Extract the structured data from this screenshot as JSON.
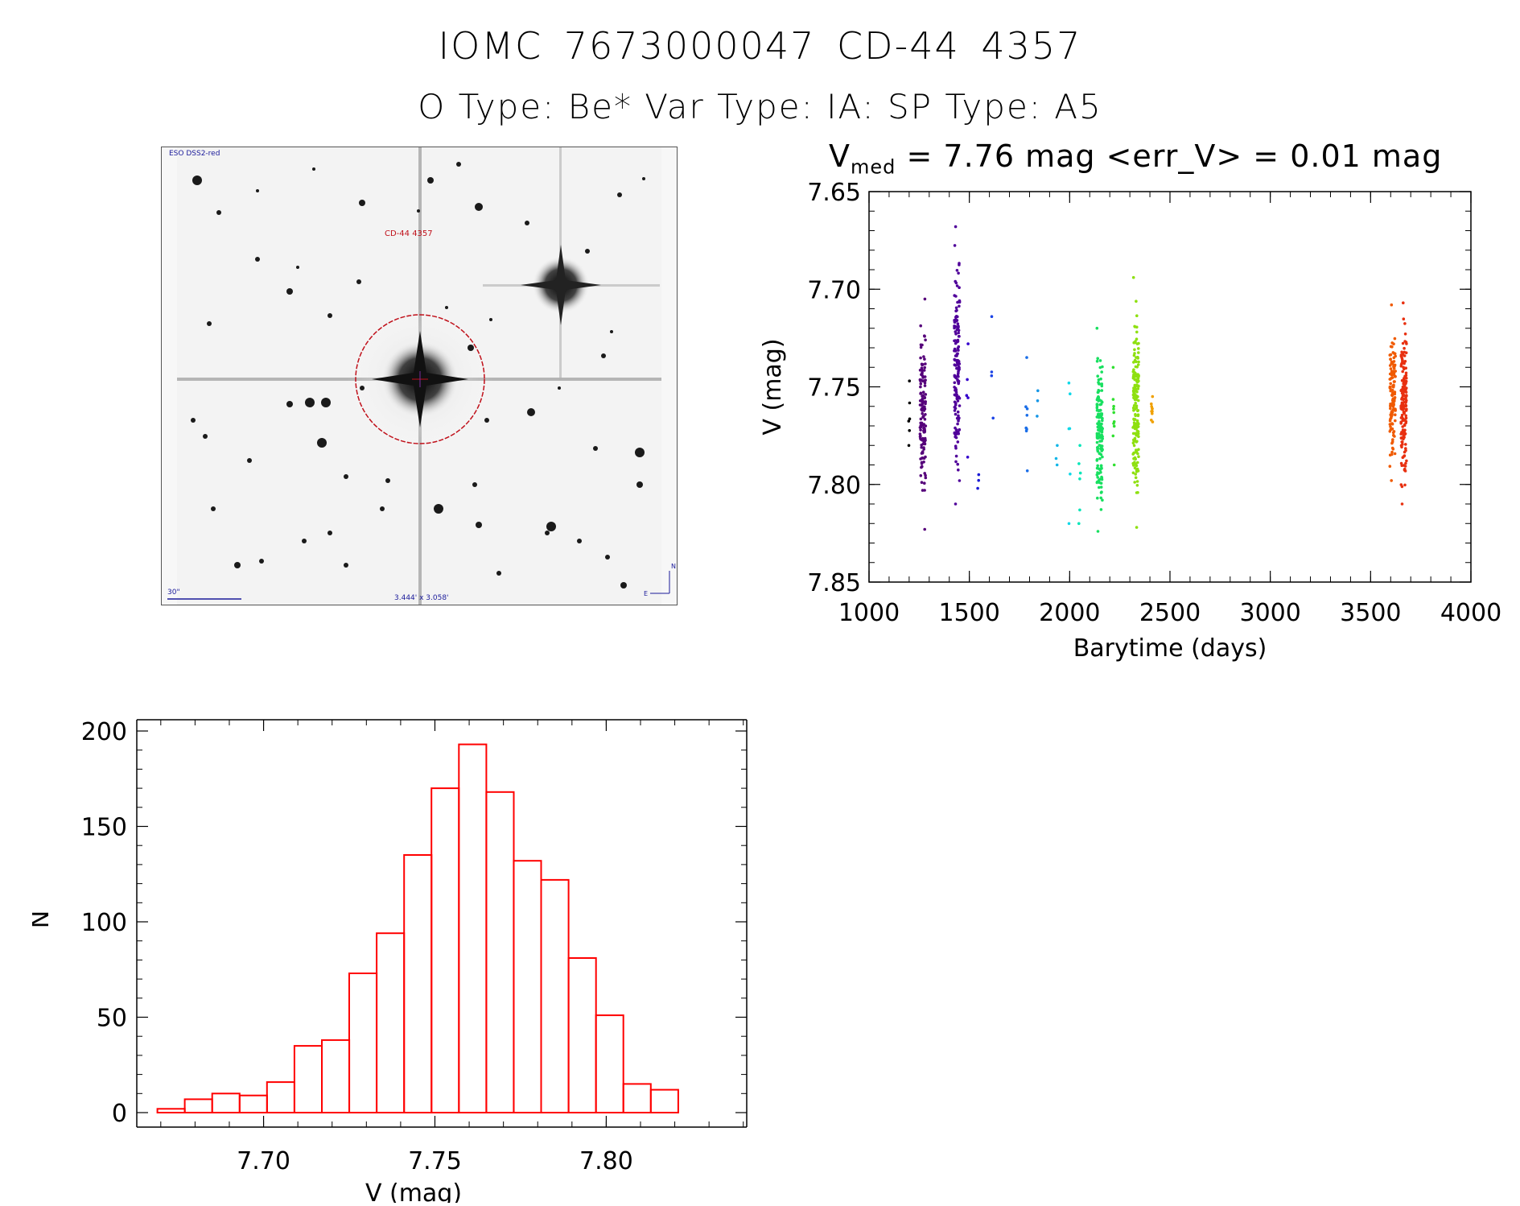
{
  "header": {
    "title": "IOMC 7673000047   CD-44  4357",
    "subtitle": "O Type: Be*  Var Type: IA:  SP Type: A5"
  },
  "sky_image": {
    "label_top_left": "ESO DSS2-red",
    "target_label": "CD-44 4357",
    "scale_label": "30\"",
    "fov_label": "3.444' x 3.058'",
    "compass_n": "N",
    "compass_e": "E"
  },
  "lightcurve_title": {
    "prefix": "V",
    "subscript": "med",
    "rest": "= 7.76 mag <err_V> = 0.01 mag"
  },
  "chart_data": [
    {
      "type": "scatter",
      "xlabel": "Barytime (days)",
      "ylabel": "V (mag)",
      "xlim": [
        1000,
        4000
      ],
      "ylim": [
        7.85,
        7.65
      ],
      "y_inverted": true,
      "xticks": [
        1000,
        1500,
        2000,
        2500,
        3000,
        3500,
        4000
      ],
      "xtick_labels": [
        "1000",
        "1500",
        "2000",
        "2500",
        "3000",
        "3500",
        "4000"
      ],
      "yticks": [
        7.65,
        7.7,
        7.75,
        7.8,
        7.85
      ],
      "ytick_labels": [
        "7.65",
        "7.70",
        "7.75",
        "7.80",
        "7.85"
      ],
      "color_by_time": true,
      "groups": [
        {
          "x": 1200,
          "ymin": 7.747,
          "ymax": 7.78,
          "n": 6,
          "color": "#000000"
        },
        {
          "x": 1268,
          "ymin": 7.705,
          "ymax": 7.823,
          "n": 140,
          "color": "#55007a"
        },
        {
          "x": 1438,
          "ymin": 7.668,
          "ymax": 7.81,
          "n": 150,
          "color": "#50009a"
        },
        {
          "x": 1490,
          "ymin": 7.728,
          "ymax": 7.786,
          "n": 5,
          "color": "#3300cc"
        },
        {
          "x": 1545,
          "ymin": 7.795,
          "ymax": 7.802,
          "n": 3,
          "color": "#1a1ad6"
        },
        {
          "x": 1615,
          "ymin": 7.714,
          "ymax": 7.766,
          "n": 4,
          "color": "#1c44e6"
        },
        {
          "x": 1785,
          "ymin": 7.735,
          "ymax": 7.793,
          "n": 8,
          "color": "#1a6ee8"
        },
        {
          "x": 1840,
          "ymin": 7.752,
          "ymax": 7.765,
          "n": 3,
          "color": "#1596e6"
        },
        {
          "x": 1935,
          "ymin": 7.78,
          "ymax": 7.79,
          "n": 3,
          "color": "#11b6e8"
        },
        {
          "x": 2000,
          "ymin": 7.748,
          "ymax": 7.82,
          "n": 6,
          "color": "#0fd8e8"
        },
        {
          "x": 2050,
          "ymin": 7.78,
          "ymax": 7.82,
          "n": 6,
          "color": "#00e6b8"
        },
        {
          "x": 2150,
          "ymin": 7.72,
          "ymax": 7.824,
          "n": 150,
          "color": "#18e060"
        },
        {
          "x": 2220,
          "ymin": 7.74,
          "ymax": 7.79,
          "n": 10,
          "color": "#30e030"
        },
        {
          "x": 2330,
          "ymin": 7.694,
          "ymax": 7.822,
          "n": 170,
          "color": "#8ee010"
        },
        {
          "x": 2410,
          "ymin": 7.755,
          "ymax": 7.768,
          "n": 10,
          "color": "#f0a000"
        },
        {
          "x": 3610,
          "ymin": 7.708,
          "ymax": 7.798,
          "n": 120,
          "color": "#f05a00"
        },
        {
          "x": 3665,
          "ymin": 7.707,
          "ymax": 7.81,
          "n": 170,
          "color": "#e83010"
        }
      ]
    },
    {
      "type": "bar",
      "histogram": true,
      "xlabel": "V (mag)",
      "ylabel": "N",
      "xlim": [
        7.663,
        7.841
      ],
      "ylim": [
        0,
        200
      ],
      "xticks": [
        7.7,
        7.75,
        7.8
      ],
      "xtick_labels": [
        "7.70",
        "7.75",
        "7.80"
      ],
      "yticks": [
        0,
        50,
        100,
        150,
        200
      ],
      "ytick_labels": [
        "0",
        "50",
        "100",
        "150",
        "200"
      ],
      "bin_width": 0.008,
      "bin_left_edges": [
        7.669,
        7.677,
        7.685,
        7.693,
        7.701,
        7.709,
        7.717,
        7.725,
        7.733,
        7.741,
        7.749,
        7.757,
        7.765,
        7.773,
        7.781,
        7.789,
        7.797,
        7.805,
        7.813
      ],
      "values": [
        2,
        7,
        10,
        9,
        16,
        35,
        38,
        73,
        94,
        135,
        170,
        193,
        168,
        132,
        122,
        81,
        51,
        15,
        12
      ],
      "bar_color": "#ff0000"
    }
  ]
}
